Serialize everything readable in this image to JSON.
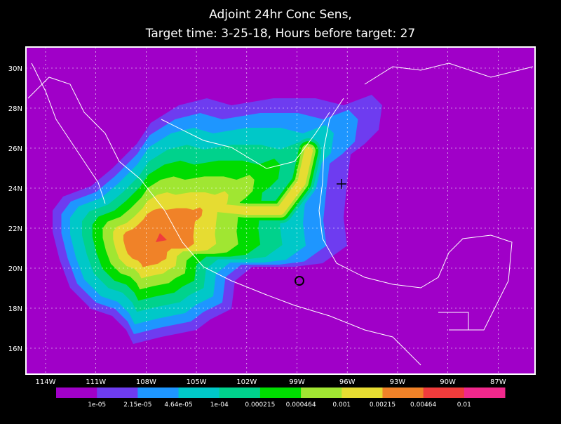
{
  "title": {
    "line1": "Adjoint 24hr Conc Sens,",
    "line2": "Target time: 3-25-18, Hours before target: 27"
  },
  "lat_labels": [
    "30N",
    "28N",
    "26N",
    "24N",
    "22N",
    "20N",
    "18N",
    "16N"
  ],
  "lon_labels": [
    "114W",
    "111W",
    "108W",
    "105W",
    "102W",
    "99W",
    "96W",
    "93W",
    "90W",
    "87W"
  ],
  "colorbar": {
    "colors": [
      "#a000c8",
      "#6e3cf0",
      "#1e96ff",
      "#00c8c8",
      "#00d28c",
      "#00dc00",
      "#a0e632",
      "#e6dc32",
      "#f08228",
      "#f03c3c",
      "#f0288c"
    ],
    "labels": [
      "1e-05",
      "2.15e-05",
      "4.64e-05",
      "1e-04",
      "0.000215",
      "0.000464",
      "0.001",
      "0.00215",
      "0.00464",
      "0.01"
    ]
  }
}
